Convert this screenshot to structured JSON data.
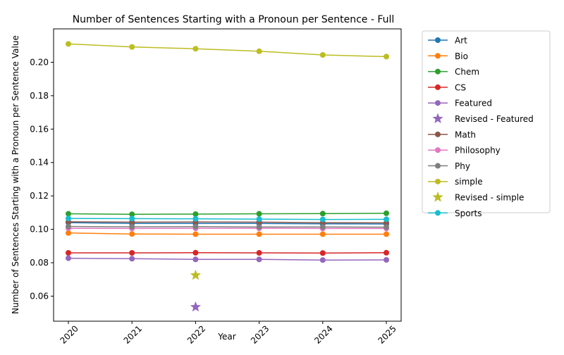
{
  "chart_data": {
    "type": "line",
    "title": "Number of Sentences Starting with a Pronoun per Sentence - Full",
    "xlabel": "Year",
    "ylabel": "Number of Sentences Starting with a Pronoun per Sentence Value",
    "x": [
      "2020",
      "2021",
      "2022",
      "2023",
      "2024",
      "2025"
    ],
    "ylim": [
      0.045,
      0.22
    ],
    "yticks": [
      "0.06",
      "0.08",
      "0.10",
      "0.12",
      "0.14",
      "0.16",
      "0.18",
      "0.20"
    ],
    "grid": false,
    "legend_position": "outside-right",
    "series": [
      {
        "name": "Art",
        "kind": "line",
        "color": "#1f77b4",
        "values": [
          0.104,
          0.1035,
          0.1035,
          0.1035,
          0.1033,
          0.1032
        ]
      },
      {
        "name": "Bio",
        "kind": "line",
        "color": "#ff7f0e",
        "values": [
          0.0978,
          0.0972,
          0.0971,
          0.0971,
          0.0971,
          0.0971
        ]
      },
      {
        "name": "Chem",
        "kind": "line",
        "color": "#2ca02c",
        "values": [
          0.1093,
          0.109,
          0.1091,
          0.1093,
          0.1094,
          0.1096
        ]
      },
      {
        "name": "CS",
        "kind": "line",
        "color": "#d62728",
        "values": [
          0.0859,
          0.0859,
          0.086,
          0.0859,
          0.0858,
          0.086
        ]
      },
      {
        "name": "Featured",
        "kind": "line",
        "color": "#9467bd",
        "values": [
          0.0827,
          0.0824,
          0.082,
          0.082,
          0.0816,
          0.0817
        ]
      },
      {
        "name": "Revised - Featured",
        "kind": "star",
        "color": "#9467bd",
        "points": [
          {
            "x": "2022",
            "y": 0.0535
          }
        ]
      },
      {
        "name": "Math",
        "kind": "line",
        "color": "#8c564b",
        "values": [
          0.1045,
          0.1043,
          0.1044,
          0.1043,
          0.104,
          0.1039
        ]
      },
      {
        "name": "Philosophy",
        "kind": "line",
        "color": "#e377c2",
        "values": [
          0.1006,
          0.1005,
          0.1006,
          0.1006,
          0.1005,
          0.1005
        ]
      },
      {
        "name": "Phy",
        "kind": "line",
        "color": "#7f7f7f",
        "values": [
          0.1017,
          0.1015,
          0.1016,
          0.1014,
          0.1014,
          0.1013
        ]
      },
      {
        "name": "simple",
        "kind": "line",
        "color": "#bcbd22",
        "values": [
          0.211,
          0.2092,
          0.2081,
          0.2066,
          0.2044,
          0.2034
        ]
      },
      {
        "name": "Revised - simple",
        "kind": "star",
        "color": "#bcbd22",
        "points": [
          {
            "x": "2022",
            "y": 0.0725
          }
        ]
      },
      {
        "name": "Sports",
        "kind": "line",
        "color": "#17becf",
        "values": [
          0.1065,
          0.1064,
          0.1063,
          0.1061,
          0.1059,
          0.106
        ]
      }
    ]
  }
}
